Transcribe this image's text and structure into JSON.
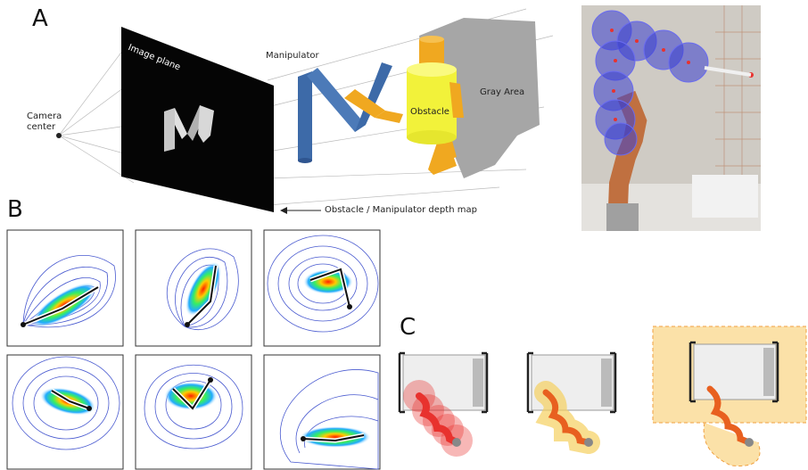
{
  "panels": {
    "a": "A",
    "b": "B",
    "c": "C"
  },
  "panel_a": {
    "camera_center": [
      "Camera",
      "center"
    ],
    "image_plane": "Image plane",
    "manipulator": "Manipulator",
    "obstacle": "Obstacle",
    "gray_area": "Gray Area",
    "depth_map": "Obstacle / Manipulator depth map"
  },
  "colors": {
    "manipulator_blue": "#3d6aa8",
    "obstacle_yellow": "#f2f23a",
    "cylinder_orange": "#f0a820",
    "sphere_blue": "#3b3fd0",
    "danger_red": "#e8322e",
    "safe_yellow": "#f5d060",
    "region_peach": "#fbe1a8"
  },
  "panel_b_plots": 6,
  "panel_c_scenes": 3
}
